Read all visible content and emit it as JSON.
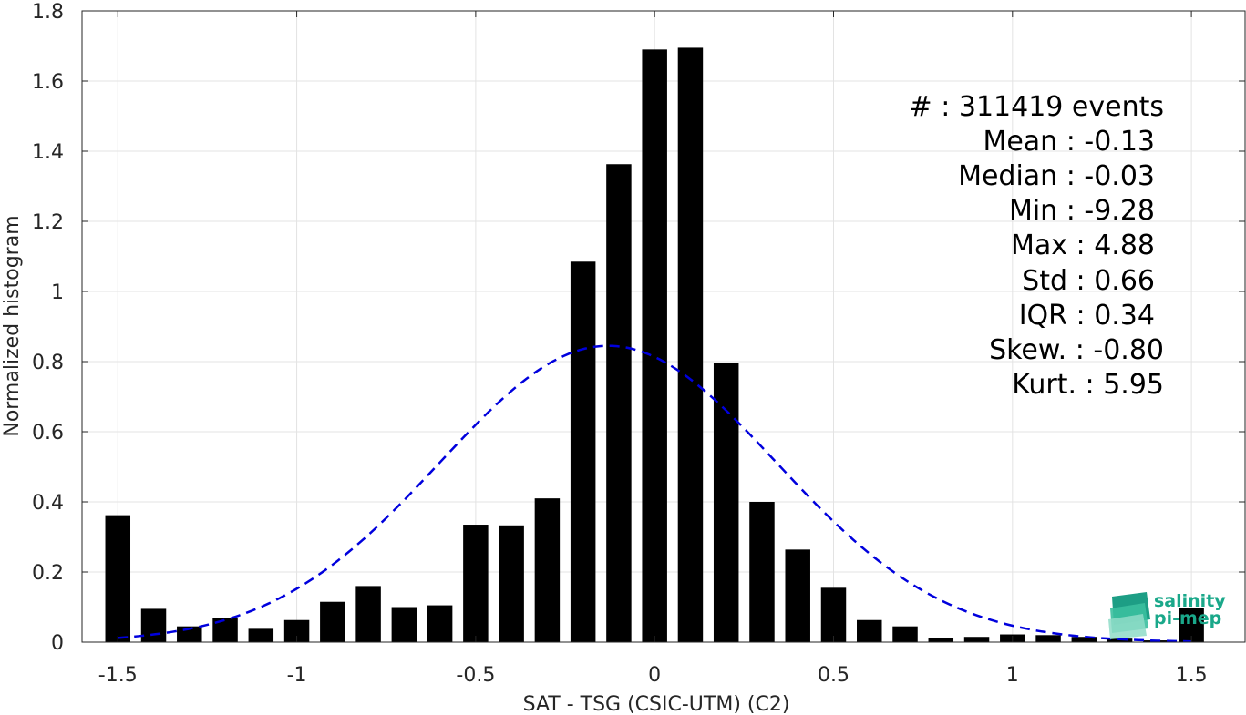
{
  "chart_data": {
    "type": "bar",
    "xlabel": "SAT - TSG (CSIC-UTM) (C2)",
    "ylabel": "Normalized histogram",
    "xlim": [
      -1.6,
      1.65
    ],
    "ylim": [
      0,
      1.8
    ],
    "x_ticks": [
      -1.5,
      -1,
      -0.5,
      0,
      0.5,
      1,
      1.5
    ],
    "x_tick_labels": [
      "-1.5",
      "-1",
      "-0.5",
      "0",
      "0.5",
      "1",
      "1.5"
    ],
    "y_ticks": [
      0,
      0.2,
      0.4,
      0.6,
      0.8,
      1,
      1.2,
      1.4,
      1.6,
      1.8
    ],
    "y_tick_labels": [
      "0",
      "0.2",
      "0.4",
      "0.6",
      "0.8",
      "1",
      "1.2",
      "1.4",
      "1.6",
      "1.8"
    ],
    "grid": true,
    "bar_width": 0.07,
    "bar_color": "#000000",
    "bars": {
      "x": [
        -1.5,
        -1.4,
        -1.3,
        -1.2,
        -1.1,
        -1.0,
        -0.9,
        -0.8,
        -0.7,
        -0.6,
        -0.5,
        -0.4,
        -0.3,
        -0.2,
        -0.1,
        0.0,
        0.1,
        0.2,
        0.3,
        0.4,
        0.5,
        0.6,
        0.7,
        0.8,
        0.9,
        1.0,
        1.1,
        1.2,
        1.3,
        1.4,
        1.5
      ],
      "values": [
        0.362,
        0.095,
        0.045,
        0.07,
        0.038,
        0.063,
        0.115,
        0.16,
        0.1,
        0.105,
        0.335,
        0.333,
        0.41,
        1.085,
        1.363,
        1.69,
        1.695,
        0.797,
        0.4,
        0.264,
        0.155,
        0.063,
        0.045,
        0.012,
        0.015,
        0.022,
        0.02,
        0.015,
        0.01,
        0.005,
        0.097
      ]
    },
    "fit_curve": {
      "style": "dashed",
      "color": "#0000dd",
      "mean": -0.13,
      "std": 0.47,
      "peak": 0.845,
      "x_range": [
        -1.5,
        1.5
      ]
    }
  },
  "stats": {
    "events": "#  : 311419 events",
    "mean": "Mean : -0.13",
    "median": "Median : -0.03",
    "min": "Min : -9.28",
    "max": "Max : 4.88",
    "std": "Std : 0.66",
    "iqr": "IQR : 0.34",
    "skew": "Skew. : -0.80",
    "kurt": "Kurt. : 5.95"
  },
  "logo": {
    "line1": "salinity",
    "line2": "pi-mep",
    "color": "#1aa88a"
  }
}
